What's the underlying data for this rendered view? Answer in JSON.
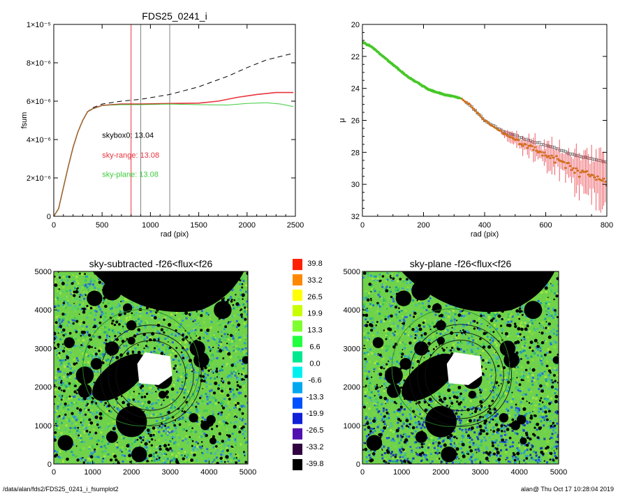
{
  "footer": {
    "left": "/data/alan/fds2/FDS25_0241_i_fsumplot2",
    "right": "alan@  Thu Oct 17 10:28:04 2019"
  },
  "chart_data": [
    {
      "type": "line",
      "title": "FDS25_0241_i",
      "xlabel": "rad (pix)",
      "ylabel": "fsum",
      "xlim": [
        0,
        2500
      ],
      "ylim": [
        0,
        1e-05
      ],
      "xticks": [
        0,
        500,
        1000,
        1500,
        2000,
        2500
      ],
      "yticks": [
        {
          "value": 0,
          "label": "0"
        },
        {
          "value": 2e-06,
          "label": "2×10⁻⁶"
        },
        {
          "value": 4e-06,
          "label": "4×10⁻⁶"
        },
        {
          "value": 6e-06,
          "label": "6×10⁻⁶"
        },
        {
          "value": 8e-06,
          "label": "8×10⁻⁶"
        },
        {
          "value": 1e-05,
          "label": "1×10⁻⁵"
        }
      ],
      "vlines": [
        {
          "x": 800,
          "color": "#e8323c"
        },
        {
          "x": 900,
          "color": "#808080"
        },
        {
          "x": 1200,
          "color": "#808080"
        }
      ],
      "annotations": [
        {
          "text": "skybox0: 13.04",
          "color": "#000000",
          "x": 500,
          "y": 4.1e-06
        },
        {
          "text": "sky-range: 13.08",
          "color": "#e8323c",
          "x": 500,
          "y": 3.05e-06
        },
        {
          "text": "sky-plane: 13.08",
          "color": "#3ccc3c",
          "x": 500,
          "y": 2.05e-06
        }
      ],
      "series": [
        {
          "color": "#000000",
          "dash": true,
          "x": [
            0,
            50,
            100,
            150,
            200,
            250,
            300,
            350,
            400,
            500,
            700,
            900,
            1200,
            1500,
            1800,
            2000,
            2200,
            2400,
            2480
          ],
          "y": [
            0,
            4e-07,
            1.5e-06,
            2.6e-06,
            3.6e-06,
            4.4e-06,
            5e-06,
            5.45e-06,
            5.65e-06,
            5.85e-06,
            6e-06,
            6.1e-06,
            6.35e-06,
            6.75e-06,
            7.3e-06,
            7.75e-06,
            8.15e-06,
            8.4e-06,
            8.5e-06
          ]
        },
        {
          "color": "#e8323c",
          "dash": false,
          "x": [
            0,
            50,
            100,
            150,
            200,
            250,
            300,
            350,
            400,
            500,
            700,
            900,
            1200,
            1500,
            1700,
            1900,
            2100,
            2300,
            2480
          ],
          "y": [
            0,
            4e-07,
            1.5e-06,
            2.6e-06,
            3.6e-06,
            4.4e-06,
            5e-06,
            5.45e-06,
            5.6e-06,
            5.78e-06,
            5.85e-06,
            5.85e-06,
            5.88e-06,
            5.9e-06,
            6e-06,
            6.2e-06,
            6.35e-06,
            6.45e-06,
            6.45e-06
          ]
        },
        {
          "color": "#3ccc3c",
          "dash": false,
          "x": [
            0,
            50,
            100,
            150,
            200,
            250,
            300,
            350,
            400,
            500,
            700,
            900,
            1200,
            1500,
            1800,
            2000,
            2200,
            2350,
            2480
          ],
          "y": [
            0,
            4e-07,
            1.5e-06,
            2.6e-06,
            3.6e-06,
            4.4e-06,
            5e-06,
            5.45e-06,
            5.6e-06,
            5.78e-06,
            5.82e-06,
            5.82e-06,
            5.85e-06,
            5.82e-06,
            5.8e-06,
            5.88e-06,
            5.92e-06,
            5.85e-06,
            5.72e-06
          ]
        },
        {
          "color": "#8b6a2a",
          "dash": false,
          "x": [
            0,
            50,
            100,
            150,
            200,
            250,
            300,
            350,
            400,
            500,
            700,
            900,
            1100
          ],
          "y": [
            0,
            4e-07,
            1.5e-06,
            2.6e-06,
            3.6e-06,
            4.4e-06,
            5e-06,
            5.45e-06,
            5.6e-06,
            5.78e-06,
            5.84e-06,
            5.84e-06,
            5.86e-06
          ]
        }
      ]
    },
    {
      "type": "scatter",
      "title": "",
      "xlabel": "rad (pix)",
      "ylabel": "μ",
      "xlim": [
        0,
        800
      ],
      "ylim": [
        32,
        20
      ],
      "xticks": [
        0,
        200,
        400,
        600,
        800
      ],
      "yticks": [
        20,
        22,
        24,
        26,
        28,
        30,
        32
      ],
      "profile_knots": {
        "x": [
          0,
          30,
          80,
          150,
          220,
          270,
          300,
          320,
          350,
          380,
          400,
          430,
          460,
          500,
          560,
          620,
          680,
          740,
          800
        ],
        "y": [
          21.1,
          21.4,
          22.2,
          23.3,
          24.1,
          24.4,
          24.5,
          24.6,
          25.0,
          25.6,
          26.0,
          26.4,
          26.8,
          27.2,
          27.8,
          28.3,
          28.9,
          29.4,
          29.8
        ]
      },
      "green_until": 320
    },
    {
      "type": "heatmap",
      "title": "sky-subtracted -f26<flux<f26",
      "xlim": [
        0,
        5000
      ],
      "ylim": [
        0,
        5000
      ],
      "xticks": [
        0,
        1000,
        2000,
        3000,
        4000,
        5000
      ],
      "yticks": [
        0,
        1000,
        2000,
        3000,
        4000,
        5000
      ]
    },
    {
      "type": "heatmap",
      "title": "sky-plane -f26<flux<f26",
      "xlim": [
        0,
        5000
      ],
      "ylim": [
        0,
        5000
      ],
      "xticks": [
        0,
        1000,
        2000,
        3000,
        4000,
        5000
      ],
      "yticks": [
        0,
        1000,
        2000,
        3000,
        4000,
        5000
      ]
    }
  ],
  "colorbar": {
    "labels": [
      "39.8",
      "33.2",
      "26.5",
      "19.9",
      "13.3",
      "6.6",
      "0.0",
      "-6.6",
      "-13.3",
      "-19.9",
      "-26.5",
      "-33.2",
      "-39.8"
    ],
    "colors": [
      "#ff2000",
      "#ff8800",
      "#ffff00",
      "#c8ff00",
      "#80ff30",
      "#20ff40",
      "#00e890",
      "#00f0f0",
      "#00a8f0",
      "#0050ff",
      "#1020d8",
      "#5010b0",
      "#300040",
      "#000000"
    ]
  },
  "masks": {
    "circles": [
      {
        "x": 1500,
        "y": 4500,
        "r": 250
      },
      {
        "x": 1900,
        "y": 4050,
        "r": 120
      },
      {
        "x": 2000,
        "y": 3600,
        "r": 130
      },
      {
        "x": 1050,
        "y": 4300,
        "r": 200
      },
      {
        "x": 4350,
        "y": 4000,
        "r": 230
      },
      {
        "x": 2000,
        "y": 3200,
        "r": 100
      },
      {
        "x": 1500,
        "y": 3000,
        "r": 180
      },
      {
        "x": 400,
        "y": 3150,
        "r": 140
      },
      {
        "x": 800,
        "y": 2300,
        "r": 230
      },
      {
        "x": 800,
        "y": 1900,
        "r": 180
      },
      {
        "x": 3700,
        "y": 3000,
        "r": 200
      },
      {
        "x": 3800,
        "y": 2700,
        "r": 200
      },
      {
        "x": 2800,
        "y": 2200,
        "r": 250
      },
      {
        "x": 2800,
        "y": 1800,
        "r": 100
      },
      {
        "x": 2000,
        "y": 1100,
        "r": 400
      },
      {
        "x": 1500,
        "y": 700,
        "r": 150
      },
      {
        "x": 2200,
        "y": 250,
        "r": 200
      },
      {
        "x": 300,
        "y": 550,
        "r": 200
      },
      {
        "x": 3600,
        "y": 1200,
        "r": 120
      },
      {
        "x": 4050,
        "y": 1150,
        "r": 120
      },
      {
        "x": 3900,
        "y": 1000,
        "r": 120
      },
      {
        "x": 4950,
        "y": 2700,
        "r": 100
      },
      {
        "x": 1100,
        "y": 2600,
        "r": 150
      },
      {
        "x": 4100,
        "y": 600,
        "r": 90
      }
    ],
    "rings": [
      {
        "x": 2250,
        "y": 2500,
        "r": 1500
      },
      {
        "x": 2500,
        "y": 2300,
        "r": 900
      },
      {
        "x": 2500,
        "y": 2300,
        "r": 1100
      },
      {
        "x": 2500,
        "y": 2300,
        "r": 1300
      }
    ]
  }
}
